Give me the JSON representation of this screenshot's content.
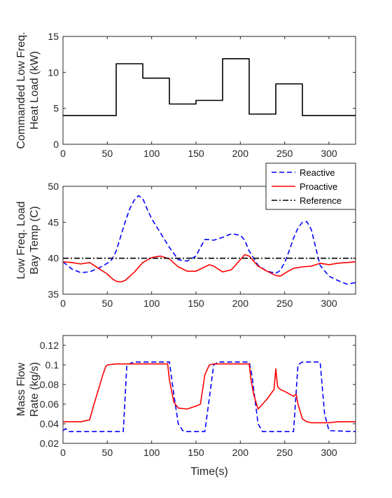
{
  "chart_data": [
    {
      "type": "line",
      "ylabel": [
        "Commanded Low Freq.",
        "Heat Load (kW)"
      ],
      "xlim": [
        0,
        330
      ],
      "ylim": [
        0,
        15
      ],
      "xticks": [
        0,
        50,
        100,
        150,
        200,
        250,
        300
      ],
      "yticks": [
        0,
        5,
        10,
        15
      ],
      "series": [
        {
          "color": "#000000",
          "style": "solid",
          "step": true,
          "x": [
            0,
            60,
            60,
            90,
            90,
            120,
            120,
            150,
            150,
            180,
            180,
            210,
            210,
            240,
            240,
            270,
            270,
            330
          ],
          "y": [
            4.0,
            4.0,
            11.2,
            11.2,
            9.2,
            9.2,
            5.6,
            5.6,
            6.1,
            6.1,
            11.9,
            11.9,
            4.2,
            4.2,
            8.4,
            8.4,
            4.0,
            4.0
          ]
        }
      ]
    },
    {
      "type": "line",
      "ylabel": [
        "Low Freq. Load",
        "Bay Temp (C)"
      ],
      "xlim": [
        0,
        330
      ],
      "ylim": [
        35,
        50
      ],
      "xticks": [
        0,
        50,
        100,
        150,
        200,
        250,
        300
      ],
      "yticks": [
        35,
        40,
        45,
        50
      ],
      "legend_position": "top-right",
      "series": [
        {
          "name": "Reactive",
          "color": "#0000ff",
          "style": "dashed",
          "x": [
            0,
            10,
            20,
            30,
            40,
            50,
            55,
            60,
            65,
            70,
            75,
            80,
            85,
            90,
            95,
            100,
            110,
            120,
            130,
            140,
            150,
            155,
            160,
            165,
            170,
            180,
            190,
            200,
            205,
            210,
            220,
            230,
            240,
            245,
            250,
            255,
            260,
            265,
            270,
            275,
            280,
            285,
            290,
            300,
            310,
            320,
            330
          ],
          "y": [
            39.5,
            38.5,
            38.0,
            38.1,
            38.6,
            39.3,
            39.8,
            41.0,
            43.0,
            45.0,
            46.8,
            48.0,
            48.7,
            48.3,
            46.8,
            45.5,
            43.5,
            41.5,
            39.8,
            39.6,
            40.3,
            41.5,
            42.6,
            42.6,
            42.5,
            42.9,
            43.4,
            43.2,
            42.5,
            41.0,
            39.0,
            38.2,
            37.9,
            38.3,
            39.4,
            41.0,
            42.8,
            44.2,
            45.0,
            45.1,
            44.0,
            41.5,
            39.0,
            37.5,
            36.9,
            36.4,
            36.6
          ]
        },
        {
          "name": "Proactive",
          "color": "#ff0000",
          "style": "solid",
          "x": [
            0,
            10,
            20,
            30,
            40,
            50,
            55,
            60,
            65,
            70,
            80,
            90,
            100,
            110,
            120,
            130,
            140,
            150,
            160,
            165,
            170,
            180,
            190,
            200,
            205,
            210,
            220,
            230,
            240,
            245,
            250,
            260,
            270,
            280,
            290,
            300,
            310,
            320,
            330
          ],
          "y": [
            39.5,
            39.4,
            39.2,
            39.4,
            38.6,
            37.8,
            37.2,
            36.8,
            36.7,
            36.9,
            38.0,
            39.4,
            40.1,
            40.3,
            39.9,
            38.8,
            38.2,
            38.2,
            38.8,
            39.1,
            38.9,
            38.1,
            38.4,
            39.8,
            40.5,
            40.3,
            38.9,
            38.2,
            37.6,
            37.5,
            37.9,
            38.6,
            38.8,
            38.9,
            39.3,
            39.1,
            39.3,
            39.4,
            39.5
          ]
        },
        {
          "name": "Reference",
          "color": "#000000",
          "style": "dashdot",
          "x": [
            0,
            330
          ],
          "y": [
            40,
            40
          ]
        }
      ]
    },
    {
      "type": "line",
      "xlabel": "Time(s)",
      "ylabel": [
        "Mass Flow",
        "Rate (kg/s)"
      ],
      "xlim": [
        0,
        330
      ],
      "ylim": [
        0.02,
        0.13
      ],
      "xticks": [
        0,
        50,
        100,
        150,
        200,
        250,
        300
      ],
      "yticks": [
        0.02,
        0.04,
        0.06,
        0.08,
        0.1,
        0.12
      ],
      "ytick_labels": [
        "0.02",
        "0.04",
        "0.06",
        "0.08",
        "0.1",
        "0.12"
      ],
      "series": [
        {
          "name": "Reactive",
          "color": "#0000ff",
          "style": "dashed",
          "x": [
            0,
            3,
            6,
            60,
            68,
            72,
            80,
            120,
            125,
            130,
            135,
            140,
            160,
            170,
            175,
            210,
            213,
            220,
            225,
            260,
            265,
            270,
            290,
            295,
            300,
            330
          ],
          "y": [
            0.033,
            0.035,
            0.032,
            0.032,
            0.032,
            0.1,
            0.103,
            0.103,
            0.07,
            0.04,
            0.033,
            0.032,
            0.032,
            0.1,
            0.103,
            0.103,
            0.09,
            0.04,
            0.032,
            0.032,
            0.1,
            0.103,
            0.103,
            0.05,
            0.033,
            0.032
          ]
        },
        {
          "name": "Proactive",
          "color": "#ff0000",
          "style": "solid",
          "x": [
            0,
            10,
            20,
            30,
            35,
            40,
            45,
            48,
            50,
            60,
            100,
            118,
            120,
            125,
            130,
            140,
            150,
            155,
            160,
            165,
            170,
            200,
            210,
            212,
            215,
            220,
            230,
            238,
            240,
            242,
            245,
            250,
            260,
            263,
            265,
            270,
            275,
            280,
            300,
            310,
            320,
            330
          ],
          "y": [
            0.042,
            0.042,
            0.042,
            0.044,
            0.06,
            0.075,
            0.09,
            0.098,
            0.1,
            0.101,
            0.101,
            0.101,
            0.085,
            0.062,
            0.056,
            0.055,
            0.058,
            0.06,
            0.09,
            0.1,
            0.101,
            0.101,
            0.101,
            0.085,
            0.07,
            0.055,
            0.065,
            0.075,
            0.096,
            0.078,
            0.075,
            0.073,
            0.068,
            0.07,
            0.06,
            0.045,
            0.042,
            0.041,
            0.041,
            0.042,
            0.042,
            0.042
          ]
        }
      ]
    }
  ]
}
